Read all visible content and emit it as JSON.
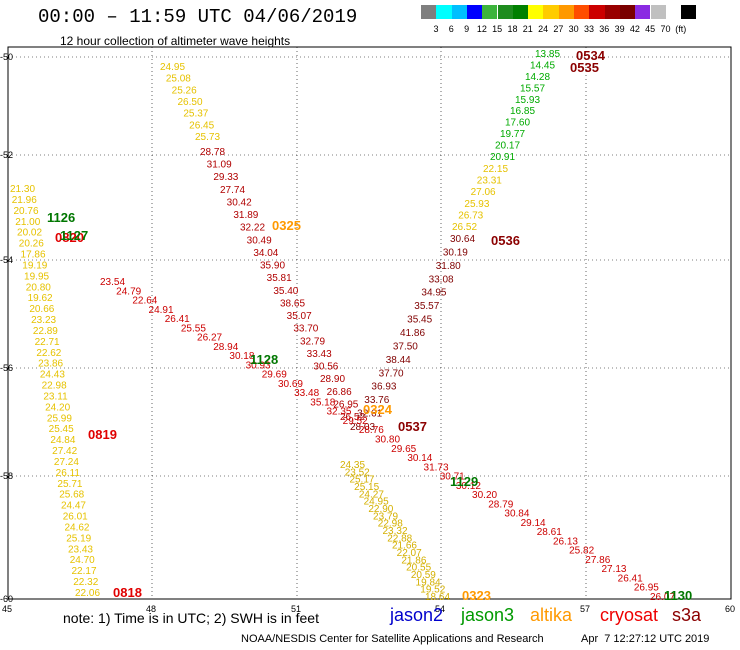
{
  "title": "00:00 – 11:59 UTC 04/06/2019",
  "subtitle": "12 hour collection of altimeter wave heights",
  "legend": {
    "colors": [
      "#7f7f7f",
      "#00ffff",
      "#00bfff",
      "#0000ff",
      "#3cb43c",
      "#1e8c1e",
      "#008000",
      "#ffff00",
      "#ffcc00",
      "#ff9900",
      "#ff4d00",
      "#cc0000",
      "#990000",
      "#7a0000",
      "#8a2be2",
      "#c0c0c0",
      "#ffffff",
      "#000000"
    ],
    "labels": [
      "3",
      "6",
      "9",
      "12",
      "15",
      "18",
      "21",
      "24",
      "27",
      "30",
      "33",
      "36",
      "39",
      "42",
      "45",
      "70",
      "(ft)"
    ]
  },
  "axes": {
    "lat_labels": [
      "-50",
      "-52",
      "-54",
      "-56",
      "-58",
      "-60"
    ],
    "lon_labels": [
      "45",
      "48",
      "51",
      "54",
      "57",
      "60"
    ]
  },
  "passes": [
    {
      "id": "0534",
      "color": "#8b0000",
      "values": []
    },
    {
      "id": "0535",
      "color": "#8b0000",
      "values": []
    },
    {
      "id": "0536",
      "color": "#8b0000",
      "values": []
    },
    {
      "id": "0537",
      "color": "#8b0000",
      "values": []
    },
    {
      "id": "0818",
      "color": "#e00000",
      "values": []
    },
    {
      "id": "0819",
      "color": "#e00000",
      "values": []
    },
    {
      "id": "0820",
      "color": "#e00000",
      "values": []
    },
    {
      "id": "0323",
      "color": "#ff9900",
      "values": []
    },
    {
      "id": "0324",
      "color": "#ff9900",
      "values": []
    },
    {
      "id": "0325",
      "color": "#ff9900",
      "values": []
    },
    {
      "id": "1126",
      "color": "#007700",
      "values": []
    },
    {
      "id": "1127",
      "color": "#007700",
      "values": []
    },
    {
      "id": "1128",
      "color": "#007700",
      "values": []
    },
    {
      "id": "1129",
      "color": "#007700",
      "values": []
    },
    {
      "id": "1130",
      "color": "#007700",
      "values": []
    }
  ],
  "tracks": {
    "a_yellow": [
      "24.95",
      "25.08",
      "25.26",
      "26.50",
      "25.37",
      "26.45",
      "25.73"
    ],
    "a_red": [
      "28.78",
      "31.09",
      "29.33",
      "27.74",
      "30.42",
      "31.89",
      "32.22",
      "30.49",
      "34.04",
      "35.90",
      "35.81",
      "35.40",
      "38.65",
      "35.07",
      "33.70",
      "32.79",
      "33.43",
      "30.56",
      "28.90",
      "26.86",
      "26.95",
      "26.52"
    ],
    "b_green": [
      "13.85",
      "14.45",
      "14.28",
      "15.57",
      "15.93",
      "16.85",
      "17.60",
      "19.77",
      "20.17",
      "20.91"
    ],
    "b_yellow": [
      "22.15",
      "23.31",
      "27.06",
      "25.93",
      "26.73",
      "26.52"
    ],
    "b_red": [
      "30.64",
      "30.19",
      "31.80",
      "33.08",
      "34.95",
      "35.57",
      "35.45",
      "41.86",
      "37.50",
      "38.44",
      "37.70",
      "36.93",
      "33.76",
      "32.61",
      "28.03"
    ],
    "c_yellow_left": [
      "21.30",
      "21.96",
      "20.76",
      "21.00",
      "20.02",
      "20.26",
      "17.86",
      "19.19",
      "19.95",
      "20.80",
      "19.62",
      "20.66",
      "23.23",
      "22.89",
      "22.71",
      "22.62",
      "23.86",
      "24.43",
      "22.98",
      "23.11",
      "24.20",
      "25.99",
      "25.45",
      "24.84",
      "27.42",
      "27.24",
      "26.11",
      "25.71",
      "25.68",
      "24.47",
      "26.01",
      "24.62",
      "25.19",
      "23.43",
      "24.70",
      "22.17",
      "22.32",
      "22.06"
    ],
    "c_diag": [
      "23.54",
      "24.79",
      "22.64",
      "24.91",
      "26.41",
      "25.55",
      "26.27",
      "28.94",
      "30.18",
      "30.93",
      "29.69",
      "30.69",
      "33.48",
      "35.18",
      "32.35",
      "29.52",
      "28.76",
      "30.80",
      "29.65",
      "30.14",
      "31.73",
      "30.71",
      "30.12",
      "30.20",
      "28.79",
      "30.84",
      "29.14",
      "28.61",
      "26.13",
      "25.82",
      "27.86",
      "27.13",
      "26.41",
      "26.95",
      "26.07"
    ],
    "d_yellow": [
      "24.35",
      "23.52",
      "25.17",
      "25.15",
      "24.27",
      "24.95",
      "22.90",
      "23.79",
      "22.98",
      "23.32",
      "22.88",
      "21.66",
      "22.07",
      "21.86",
      "20.55",
      "20.59",
      "19.84",
      "19.52",
      "18.64"
    ]
  },
  "note": "note: 1) Time is in UTC; 2) SWH is in feet",
  "satellites": [
    {
      "name": "jason2",
      "color": "#0000cc"
    },
    {
      "name": "jason3",
      "color": "#009900"
    },
    {
      "name": "altika",
      "color": "#ff9900"
    },
    {
      "name": "cryosat",
      "color": "#ee0000"
    },
    {
      "name": "s3a",
      "color": "#8b0000"
    }
  ],
  "credit": "NOAA/NESDIS Center for Satellite Applications and Research",
  "timestamp": "Apr  7 12:27:12 UTC 2019"
}
